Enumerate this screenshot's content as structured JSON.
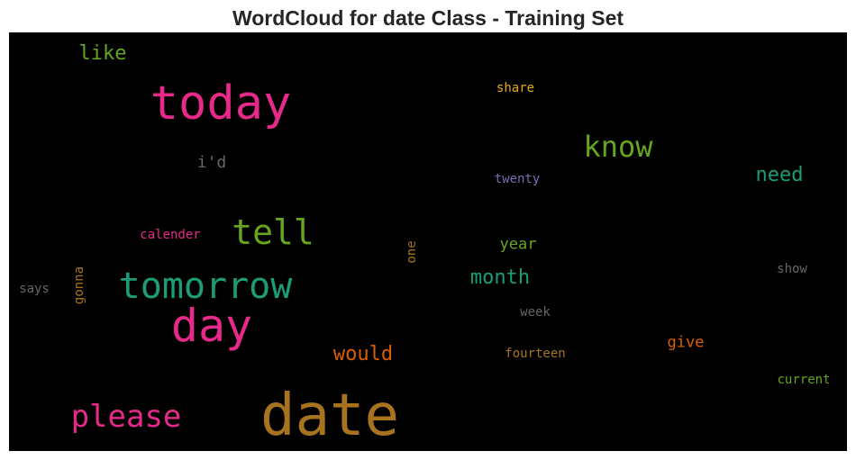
{
  "chart_data": {
    "type": "wordcloud",
    "title": "WordCloud for date Class - Training Set",
    "background": "#000000",
    "words": [
      {
        "text": "date",
        "size": 64,
        "color": "#a8731f",
        "vertical": false
      },
      {
        "text": "today",
        "size": 52,
        "color": "#e7298a",
        "vertical": false
      },
      {
        "text": "day",
        "size": 50,
        "color": "#e7298a",
        "vertical": false
      },
      {
        "text": "tomorrow",
        "size": 40,
        "color": "#1b9e77",
        "vertical": false
      },
      {
        "text": "tell",
        "size": 38,
        "color": "#66a61e",
        "vertical": false
      },
      {
        "text": "please",
        "size": 34,
        "color": "#e7298a",
        "vertical": false
      },
      {
        "text": "know",
        "size": 32,
        "color": "#66a61e",
        "vertical": false
      },
      {
        "text": "month",
        "size": 22,
        "color": "#1b9e77",
        "vertical": false
      },
      {
        "text": "would",
        "size": 22,
        "color": "#d95f02",
        "vertical": false
      },
      {
        "text": "need",
        "size": 22,
        "color": "#1b9e77",
        "vertical": false
      },
      {
        "text": "like",
        "size": 22,
        "color": "#66a61e",
        "vertical": false
      },
      {
        "text": "i'd",
        "size": 18,
        "color": "#666666",
        "vertical": false
      },
      {
        "text": "give",
        "size": 17,
        "color": "#d95f02",
        "vertical": false
      },
      {
        "text": "year",
        "size": 17,
        "color": "#66a61e",
        "vertical": false
      },
      {
        "text": "share",
        "size": 14,
        "color": "#e6ab02",
        "vertical": false
      },
      {
        "text": "twenty",
        "size": 14,
        "color": "#7570b3",
        "vertical": false
      },
      {
        "text": "calender",
        "size": 14,
        "color": "#e7298a",
        "vertical": false
      },
      {
        "text": "one",
        "size": 14,
        "color": "#a6761d",
        "vertical": true
      },
      {
        "text": "gonna",
        "size": 14,
        "color": "#a6761d",
        "vertical": true
      },
      {
        "text": "says",
        "size": 14,
        "color": "#666666",
        "vertical": false
      },
      {
        "text": "show",
        "size": 14,
        "color": "#666666",
        "vertical": false
      },
      {
        "text": "week",
        "size": 14,
        "color": "#666666",
        "vertical": false
      },
      {
        "text": "fourteen",
        "size": 14,
        "color": "#a6761d",
        "vertical": false
      },
      {
        "text": "current",
        "size": 14,
        "color": "#66a61e",
        "vertical": false
      }
    ]
  }
}
